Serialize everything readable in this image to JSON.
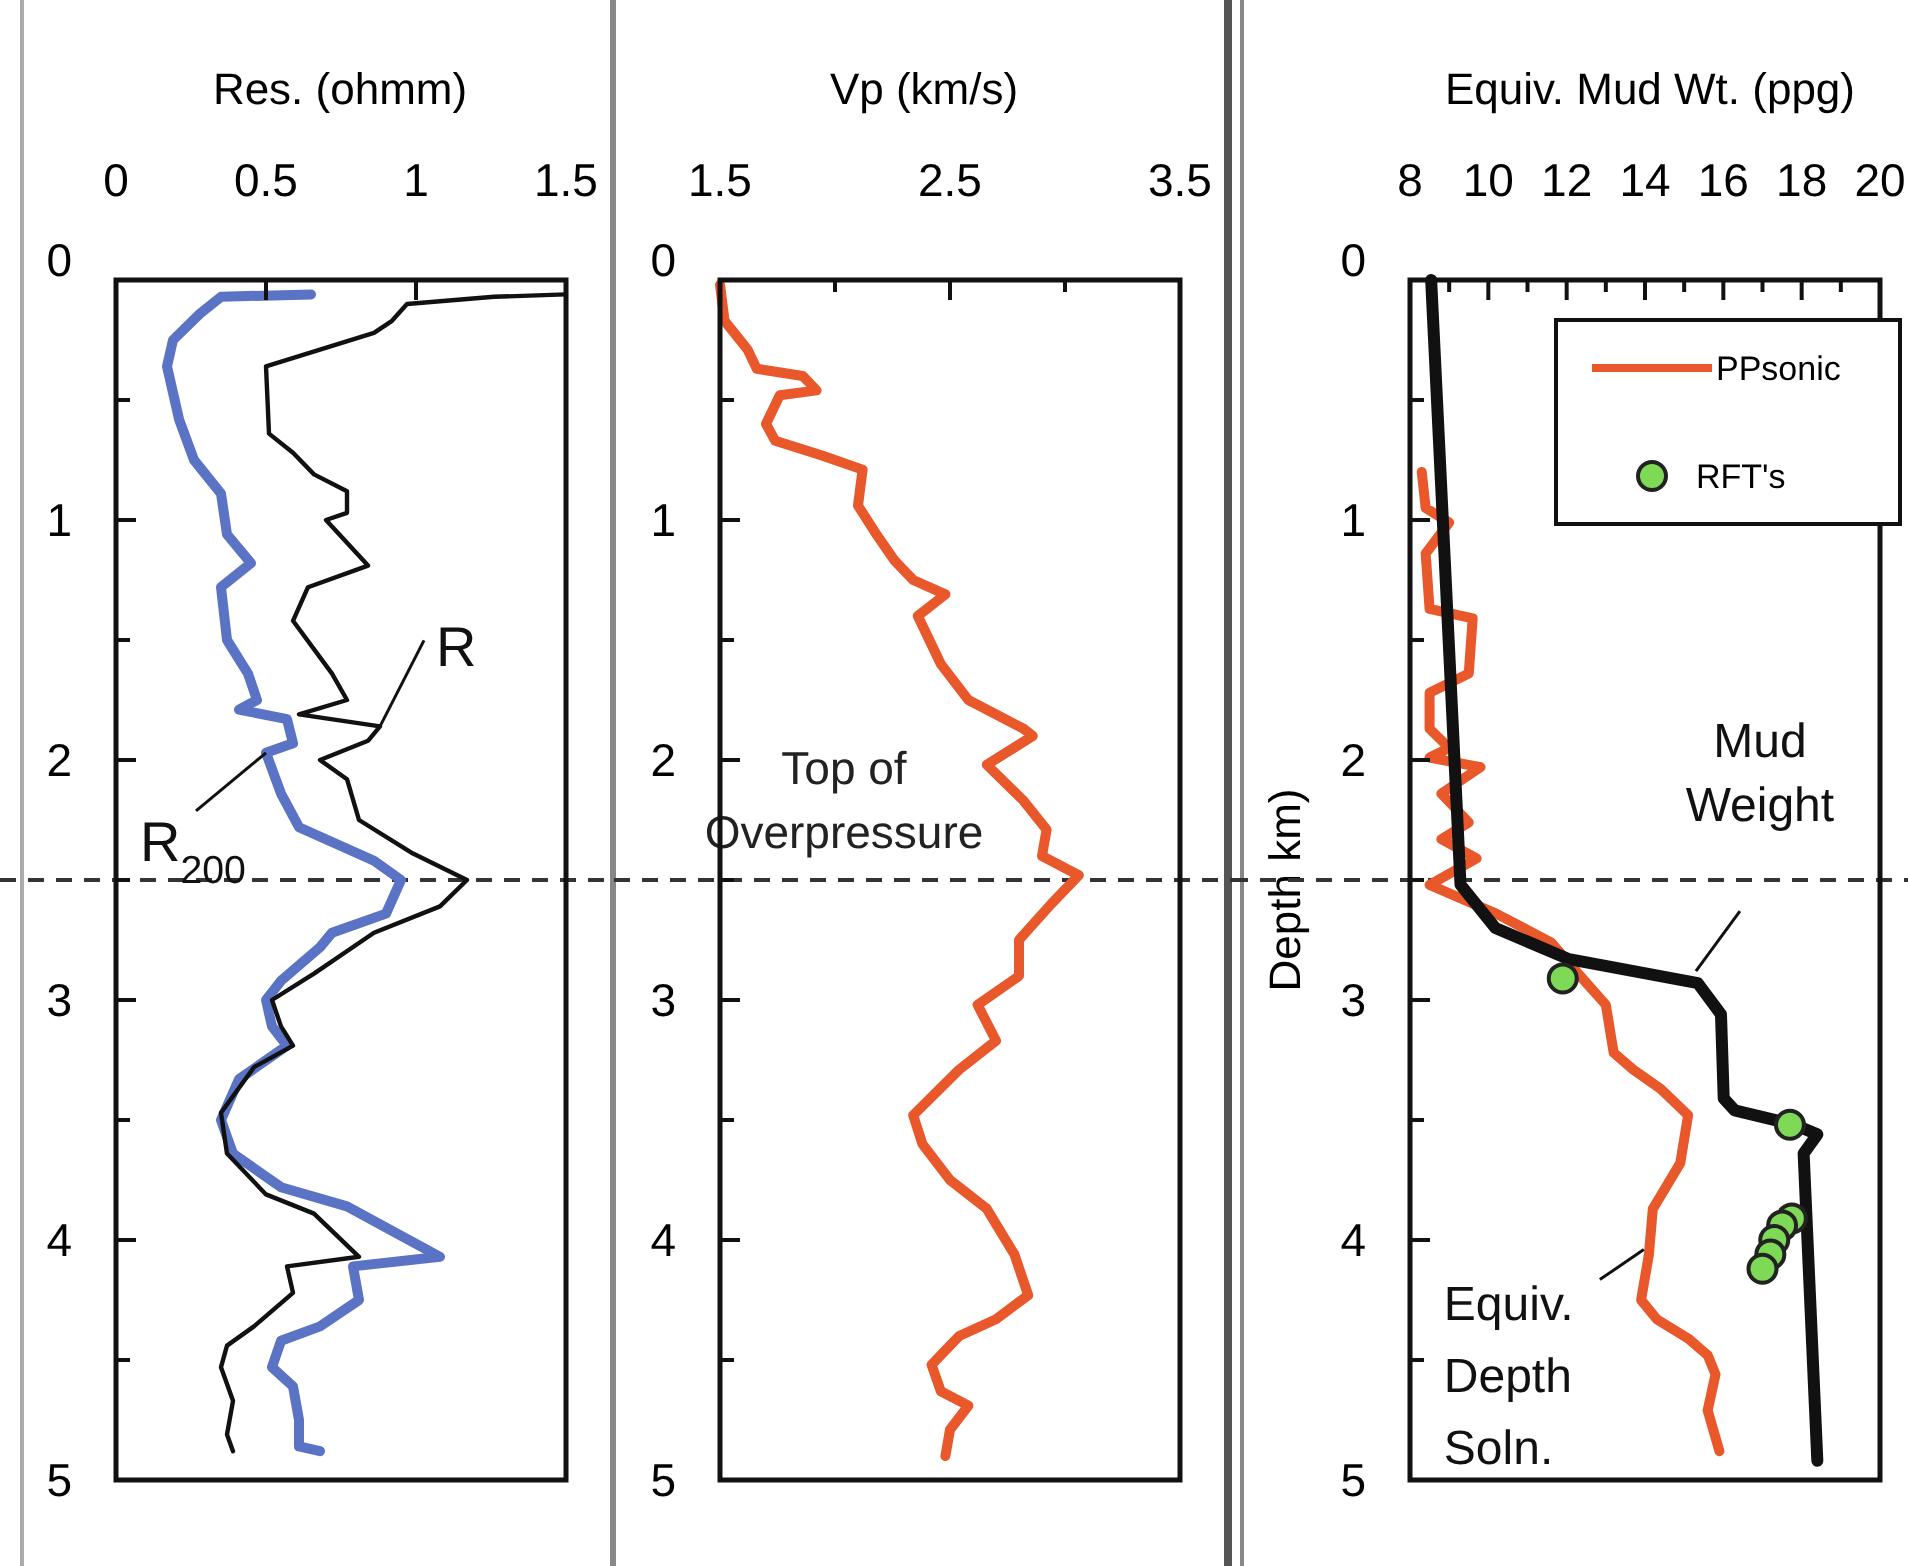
{
  "chart_data": [
    {
      "type": "line",
      "xlabel": "Res. (ohmm)",
      "xlim": [
        0,
        1.5
      ],
      "xticks": [
        0,
        0.5,
        1,
        1.5
      ],
      "ylim": [
        5,
        0
      ],
      "yticks": [
        0,
        {
          "value": 0.5,
          "label": null
        },
        1,
        {
          "value": 1.5,
          "label": null
        },
        2,
        {
          "value": 2.5,
          "label": null
        },
        3,
        {
          "value": 3.5,
          "label": null
        },
        4,
        {
          "value": 4.5,
          "label": null
        },
        5
      ],
      "series": [
        {
          "color": "#5b73c4",
          "x": [
            0.65,
            0.35,
            0.28,
            0.19,
            0.17,
            0.21,
            0.26,
            0.35,
            0.37,
            0.45,
            0.35,
            0.37,
            0.44,
            0.47,
            0.41,
            0.57,
            0.59,
            0.5,
            0.55,
            0.61,
            0.86,
            0.95,
            0.9,
            0.72,
            0.68,
            0.55,
            0.5,
            0.52,
            0.57,
            0.41,
            0.35,
            0.39,
            0.55,
            0.77,
            1.08,
            0.79,
            0.81,
            0.68,
            0.55,
            0.52,
            0.59,
            0.61,
            0.61,
            0.68
          ],
          "values": [
            0.06,
            0.07,
            0.14,
            0.25,
            0.36,
            0.58,
            0.75,
            0.89,
            1.06,
            1.18,
            1.28,
            1.5,
            1.64,
            1.75,
            1.79,
            1.83,
            1.93,
            1.97,
            2.14,
            2.28,
            2.42,
            2.5,
            2.64,
            2.72,
            2.78,
            2.92,
            3.0,
            3.11,
            3.19,
            3.33,
            3.5,
            3.64,
            3.78,
            3.86,
            4.07,
            4.11,
            4.25,
            4.36,
            4.42,
            4.53,
            4.61,
            4.75,
            4.86,
            4.88
          ]
        },
        {
          "color": "#111111",
          "x": [
            1.5,
            1.26,
            0.97,
            0.92,
            0.86,
            0.68,
            0.5,
            0.51,
            0.59,
            0.66,
            0.77,
            0.77,
            0.7,
            0.84,
            0.64,
            0.59,
            0.72,
            0.77,
            0.61,
            0.88,
            0.84,
            0.68,
            0.77,
            0.81,
            0.99,
            1.17,
            1.08,
            0.86,
            0.66,
            0.52,
            0.55,
            0.59,
            0.46,
            0.35,
            0.37,
            0.5,
            0.66,
            0.81,
            0.57,
            0.59,
            0.46,
            0.37,
            0.35,
            0.39,
            0.37,
            0.39
          ],
          "values": [
            0.06,
            0.07,
            0.1,
            0.17,
            0.22,
            0.29,
            0.36,
            0.64,
            0.72,
            0.81,
            0.88,
            0.97,
            1.0,
            1.19,
            1.28,
            1.42,
            1.64,
            1.75,
            1.81,
            1.86,
            1.92,
            2.0,
            2.08,
            2.25,
            2.39,
            2.5,
            2.61,
            2.72,
            2.89,
            3.0,
            3.11,
            3.19,
            3.28,
            3.47,
            3.64,
            3.81,
            3.89,
            4.07,
            4.11,
            4.22,
            4.36,
            4.44,
            4.53,
            4.67,
            4.81,
            4.88
          ]
        }
      ],
      "ref_lines": [
        {
          "axis": "y",
          "value": 2.5,
          "line_style": "dashed",
          "color": "#333333"
        }
      ],
      "annotations": [
        {
          "text": "R",
          "x": 0.88,
          "y": 1.86
        },
        {
          "text": "R$_{200}$",
          "x": 0.5,
          "y": 1.97
        }
      ]
    },
    {
      "type": "line",
      "xlabel": "Vp (km/s)",
      "xlim": [
        1.5,
        3.5
      ],
      "xticks": [
        1.5,
        {
          "value": 2,
          "label": null
        },
        2.5,
        {
          "value": 3,
          "label": null
        },
        3.5
      ],
      "ylim": [
        5,
        0
      ],
      "yticks": [
        0,
        {
          "value": 0.5,
          "label": null
        },
        1,
        {
          "value": 1.5,
          "label": null
        },
        2,
        {
          "value": 2.5,
          "label": null
        },
        3,
        {
          "value": 3.5,
          "label": null
        },
        4,
        {
          "value": 4.5,
          "label": null
        },
        5
      ],
      "series": [
        {
          "color": "#e8582a",
          "x": [
            1.5,
            1.52,
            1.62,
            1.66,
            1.86,
            1.92,
            1.76,
            1.7,
            1.74,
            1.94,
            2.12,
            2.1,
            2.18,
            2.26,
            2.34,
            2.48,
            2.36,
            2.46,
            2.58,
            2.82,
            2.86,
            2.66,
            2.82,
            2.92,
            2.9,
            3.06,
            2.94,
            2.8,
            2.8,
            2.62,
            2.7,
            2.54,
            2.34,
            2.38,
            2.5,
            2.66,
            2.78,
            2.84,
            2.7,
            2.54,
            2.42,
            2.46,
            2.58,
            2.5,
            2.48
          ],
          "values": [
            0.02,
            0.17,
            0.29,
            0.37,
            0.4,
            0.46,
            0.48,
            0.6,
            0.67,
            0.73,
            0.79,
            0.94,
            1.06,
            1.17,
            1.25,
            1.31,
            1.4,
            1.6,
            1.75,
            1.87,
            1.9,
            2.02,
            2.17,
            2.29,
            2.4,
            2.48,
            2.6,
            2.75,
            2.9,
            3.02,
            3.17,
            3.29,
            3.48,
            3.6,
            3.75,
            3.87,
            4.06,
            4.23,
            4.33,
            4.4,
            4.52,
            4.63,
            4.69,
            4.79,
            4.9
          ]
        }
      ],
      "ref_lines": [
        {
          "axis": "y",
          "value": 2.5,
          "line_style": "dashed",
          "color": "#333333",
          "label": "Top of Overpressure"
        }
      ]
    },
    {
      "type": "line",
      "xlabel": "Equiv. Mud Wt. (ppg)",
      "ylabel": "Depth km)",
      "xlim": [
        8,
        20
      ],
      "xticks": [
        8,
        {
          "value": 9,
          "label": null
        },
        10,
        {
          "value": 11,
          "label": null
        },
        12,
        {
          "value": 13,
          "label": null
        },
        14,
        {
          "value": 15,
          "label": null
        },
        16,
        {
          "value": 17,
          "label": null
        },
        18,
        {
          "value": 19,
          "label": null
        },
        20
      ],
      "ylim": [
        5,
        0
      ],
      "yticks": [
        0,
        {
          "value": 0.5,
          "label": null
        },
        1,
        {
          "value": 1.5,
          "label": null
        },
        2,
        {
          "value": 2.5,
          "label": null
        },
        3,
        {
          "value": 3.5,
          "label": null
        },
        4,
        {
          "value": 4.5,
          "label": null
        },
        5
      ],
      "legend": "top right",
      "series": [
        {
          "color": "#e8582a",
          "name": "PPsonic",
          "x": [
            8.3,
            8.4,
            9.0,
            8.4,
            8.5,
            9.6,
            9.5,
            8.5,
            8.5,
            9.0,
            8.5,
            9.8,
            8.8,
            9.5,
            8.8,
            9.7,
            8.5,
            10.2,
            11.6,
            12.4,
            13.0,
            13.2,
            13.7,
            14.4,
            15.1,
            14.9,
            14.2,
            14.1,
            13.9,
            14.3,
            15.1,
            15.6,
            15.8,
            15.6,
            15.9
          ],
          "values": [
            0.8,
            0.95,
            1.01,
            1.14,
            1.37,
            1.41,
            1.64,
            1.72,
            1.87,
            1.95,
            1.99,
            2.03,
            2.14,
            2.26,
            2.33,
            2.41,
            2.52,
            2.64,
            2.76,
            2.91,
            3.02,
            3.22,
            3.29,
            3.37,
            3.48,
            3.68,
            3.87,
            4.06,
            4.25,
            4.33,
            4.41,
            4.48,
            4.56,
            4.71,
            4.88
          ]
        },
        {
          "color": "#111111",
          "x": [
            8.54,
            9.29,
            10.18,
            12.06,
            15.35,
            15.94,
            16.01,
            16.29,
            17.82,
            18.4,
            18.05,
            18.4
          ],
          "values": [
            0,
            2.52,
            2.7,
            2.83,
            2.93,
            3.06,
            3.41,
            3.46,
            3.52,
            3.56,
            3.64,
            4.92
          ]
        },
        {
          "type": "scatter",
          "marker": "circle",
          "color": "#7ed957",
          "name": "RFT's",
          "x": [
            11.9,
            17.7,
            17.75,
            17.5,
            17.3,
            17.2,
            17.0
          ],
          "values": [
            2.91,
            3.52,
            3.91,
            3.94,
            4.0,
            4.06,
            4.12
          ]
        }
      ],
      "ref_lines": [
        {
          "axis": "y",
          "value": 2.5,
          "line_style": "dashed",
          "color": "#333333"
        }
      ],
      "annotations": [
        {
          "text": "Mud Weight",
          "x": 15.3,
          "y": 2.88
        },
        {
          "text": "Equiv. Depth Soln.",
          "x": 13.97,
          "y": 4.04
        }
      ]
    }
  ]
}
